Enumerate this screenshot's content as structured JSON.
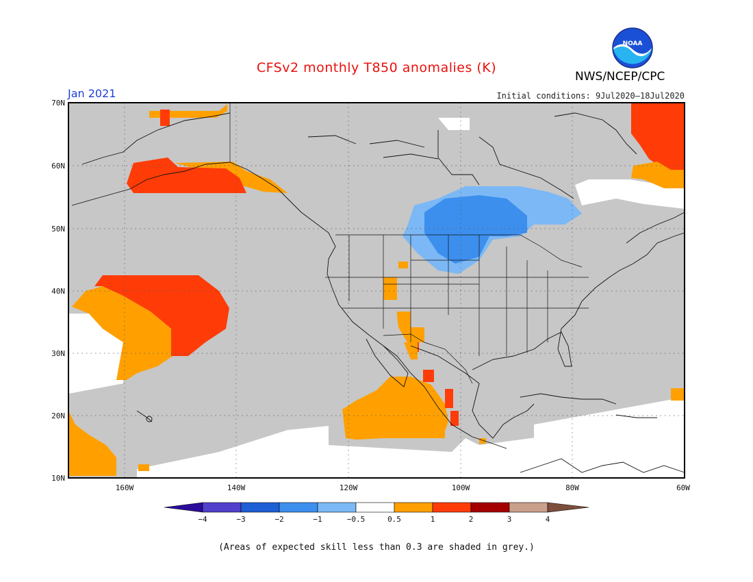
{
  "header": {
    "title": "CFSv2 monthly T850 anomalies (K)",
    "org": "NWS/NCEP/CPC",
    "month": "Jan 2021",
    "initial_conditions": "Initial conditions: 9Jul2020–18Jul2020",
    "logo_text": "NOAA"
  },
  "colors": {
    "title": "#e8100c",
    "month": "#1f3fd8",
    "grey": "#c7c7c7",
    "logo_blue": "#1a50d6",
    "logo_cyan": "#27b4f0"
  },
  "map": {
    "lat_labels": [
      "70N",
      "60N",
      "50N",
      "40N",
      "30N",
      "20N",
      "10N"
    ],
    "lon_labels": [
      "160W",
      "140W",
      "120W",
      "100W",
      "80W",
      "60W"
    ]
  },
  "legend": {
    "labels": [
      "−4",
      "−3",
      "−2",
      "−1",
      "−0.5",
      "0.5",
      "1",
      "2",
      "3",
      "4"
    ],
    "colors": [
      "#2b0c9a",
      "#5040cc",
      "#1f5fd6",
      "#3d8fee",
      "#7cb8f5",
      "#ffffff",
      "#ffa000",
      "#ff3c08",
      "#a50000",
      "#c9a08c",
      "#7e4e3c"
    ]
  },
  "footnote": "(Areas of expected skill less than 0.3 are shaded in grey.)"
}
